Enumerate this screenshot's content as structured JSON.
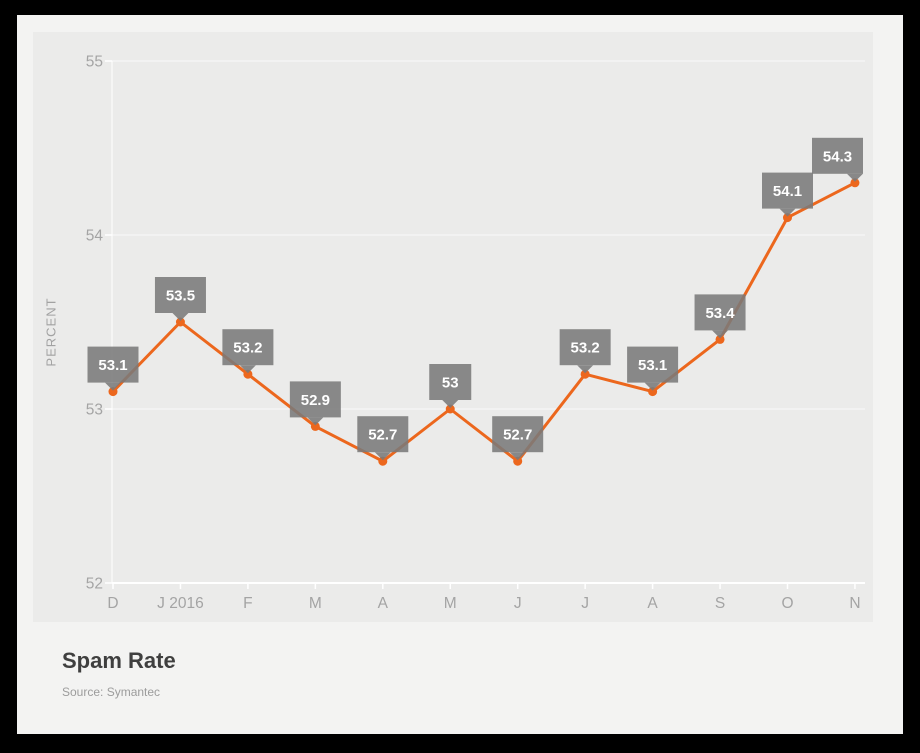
{
  "chart_data": {
    "type": "line",
    "title": "Spam Rate",
    "source": "Source: Symantec",
    "ylabel": "PERCENT",
    "x_tick_labels": [
      "D",
      "J 2016",
      "F",
      "M",
      "A",
      "M",
      "J",
      "J",
      "A",
      "S",
      "O",
      "N"
    ],
    "values": [
      53.1,
      53.5,
      53.2,
      52.9,
      52.7,
      53,
      52.7,
      53.2,
      53.1,
      53.4,
      54.1,
      54.3
    ],
    "data_labels": [
      "53.1",
      "53.5",
      "53.2",
      "52.9",
      "52.7",
      "53",
      "52.7",
      "53.2",
      "53.1",
      "53.4",
      "54.1",
      "54.3"
    ],
    "y_ticks": [
      52,
      53,
      54,
      55
    ],
    "ylim": [
      52,
      55
    ],
    "grid": true,
    "legend": "none",
    "colors": {
      "line": "#ec671d",
      "point": "#ec671d",
      "callout_box": "#7a7a7a",
      "callout_text": "#ffffff",
      "axis_text": "#a4a4a4",
      "grid_line": "#fafafa",
      "plot_background": "#ebebea",
      "panel_background": "#f3f3f2",
      "page_background": "#000000",
      "title_text": "#3f3f3f",
      "source_text": "#9c9c9c"
    }
  }
}
